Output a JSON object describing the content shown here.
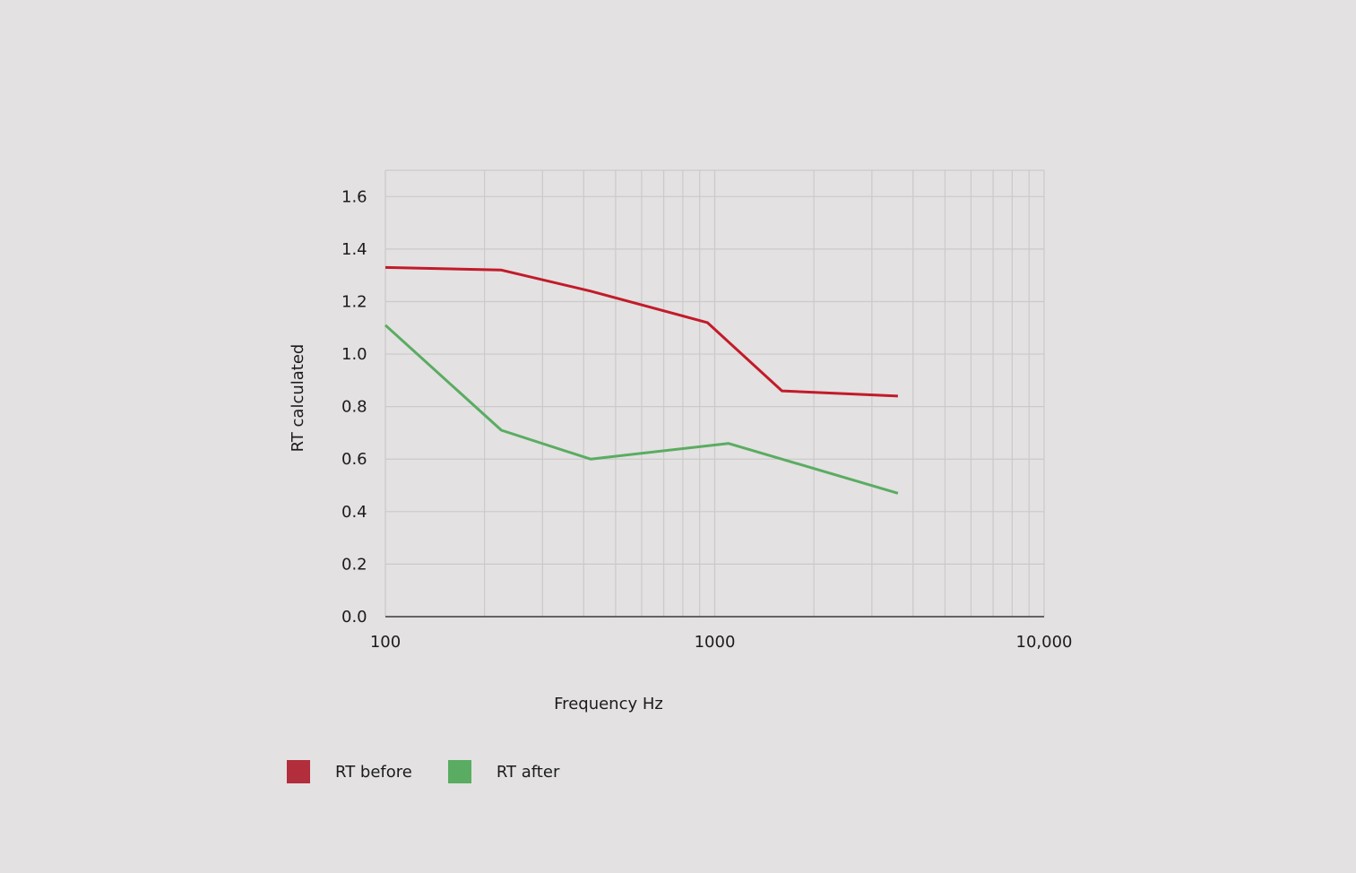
{
  "chart_data": {
    "type": "line",
    "title": "",
    "xlabel": "Frequency Hz",
    "ylabel": "RT calculated",
    "x_scale": "log",
    "xlim": [
      100,
      10000
    ],
    "ylim": [
      0,
      1.7
    ],
    "x_ticks": [
      {
        "value": 100,
        "label": "100"
      },
      {
        "value": 1000,
        "label": "1000"
      },
      {
        "value": 10000,
        "label": "10,000"
      }
    ],
    "y_ticks": [
      {
        "value": 0.0,
        "label": "0.0"
      },
      {
        "value": 0.2,
        "label": "0.2"
      },
      {
        "value": 0.4,
        "label": "0.4"
      },
      {
        "value": 0.6,
        "label": "0.6"
      },
      {
        "value": 0.8,
        "label": "0.8"
      },
      {
        "value": 1.0,
        "label": "1.0"
      },
      {
        "value": 1.2,
        "label": "1.2"
      },
      {
        "value": 1.4,
        "label": "1.4"
      },
      {
        "value": 1.6,
        "label": "1.6"
      }
    ],
    "grid": true,
    "legend_position": "bottom-left",
    "series": [
      {
        "name": "RT before",
        "color": "#c21b2a",
        "legend_color": "#b22e3c",
        "points": [
          [
            100,
            1.33
          ],
          [
            225,
            1.32
          ],
          [
            420,
            1.24
          ],
          [
            950,
            1.12
          ],
          [
            1600,
            0.86
          ],
          [
            3600,
            0.84
          ]
        ]
      },
      {
        "name": "RT after",
        "color": "#5aac62",
        "legend_color": "#5aac62",
        "points": [
          [
            100,
            1.11
          ],
          [
            225,
            0.71
          ],
          [
            420,
            0.6
          ],
          [
            1100,
            0.66
          ],
          [
            3600,
            0.47
          ]
        ]
      }
    ]
  }
}
